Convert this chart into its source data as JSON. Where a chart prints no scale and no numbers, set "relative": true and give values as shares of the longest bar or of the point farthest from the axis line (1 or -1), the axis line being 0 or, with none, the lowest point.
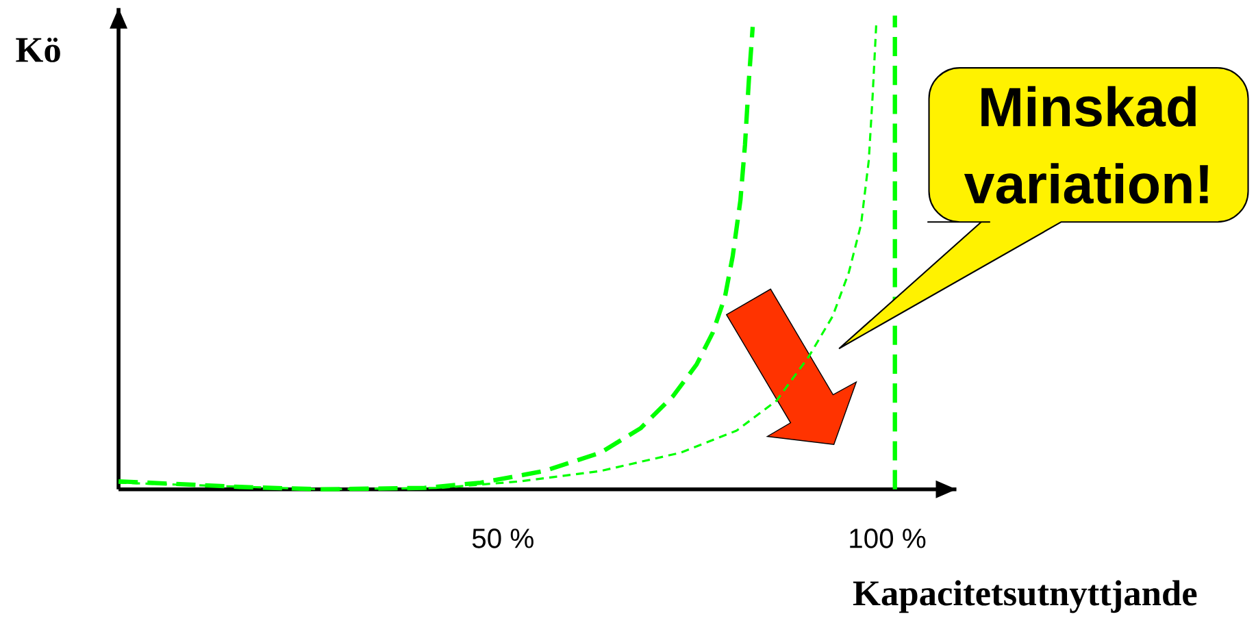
{
  "chart_data": {
    "type": "line",
    "xlabel": "Kapacitetsutnyttjande",
    "ylabel": "Kö",
    "relative": true,
    "xlim": [
      0,
      109
    ],
    "xticks": [
      {
        "value": 50,
        "label": "50 %"
      },
      {
        "value": 100,
        "label": "100 %"
      }
    ],
    "line_style": "dashed",
    "grid": false,
    "series": [
      {
        "color": "#00ff00",
        "x": [
          0,
          15.8,
          26.3,
          39.8,
          47.1,
          55.4,
          62.7,
          67.9,
          72.1,
          75.2,
          77.3,
          78.9,
          79.9,
          80.9,
          81.5,
          82.0,
          82.5
        ],
        "values": [
          0.017,
          0.005,
          0,
          0.003,
          0.014,
          0.039,
          0.078,
          0.13,
          0.198,
          0.266,
          0.334,
          0.411,
          0.497,
          0.616,
          0.735,
          0.872,
          0.986
        ]
      },
      {
        "color": "#00ff00",
        "x": [
          0,
          26.3,
          41.9,
          52.3,
          62.7,
          73.1,
          80.4,
          85.6,
          89.8,
          92.9,
          95.0,
          96.6,
          97.6,
          98.1,
          98.6
        ],
        "values": [
          0.014,
          0,
          0.003,
          0.017,
          0.039,
          0.078,
          0.125,
          0.189,
          0.283,
          0.369,
          0.462,
          0.565,
          0.701,
          0.838,
          1.0
        ]
      }
    ],
    "ref_lines": [
      {
        "axis": "x",
        "value": 101,
        "color": "#00ff00",
        "line_style": "dashed"
      }
    ],
    "annotations": [
      "Minskad variation!"
    ]
  }
}
